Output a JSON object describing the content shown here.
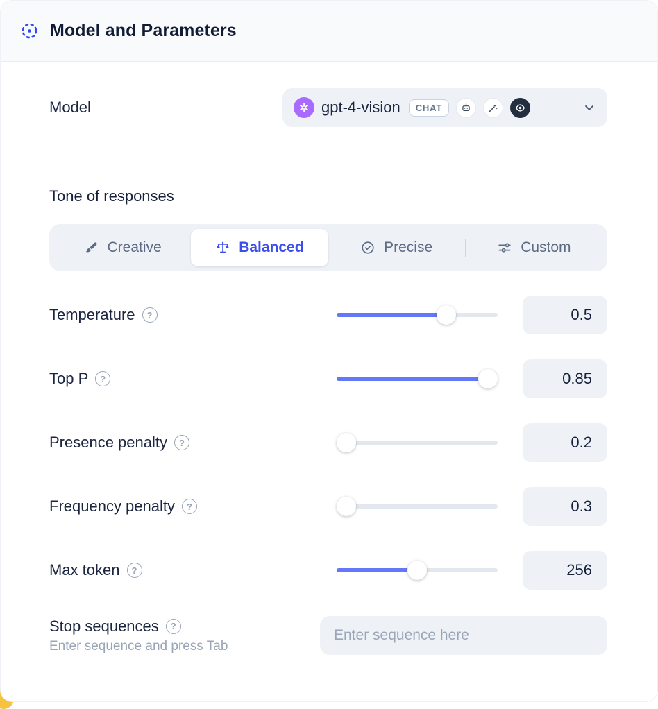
{
  "header": {
    "title": "Model and Parameters"
  },
  "model_row": {
    "label": "Model",
    "selected_model": "gpt-4-vision",
    "type_badge": "CHAT",
    "capabilities": [
      "robot-icon",
      "magic-wand-icon",
      "vision-eye-icon"
    ]
  },
  "tone": {
    "heading": "Tone of responses",
    "options": [
      {
        "label": "Creative",
        "icon": "brush-icon",
        "selected": false
      },
      {
        "label": "Balanced",
        "icon": "balance-scale-icon",
        "selected": true
      },
      {
        "label": "Precise",
        "icon": "target-check-icon",
        "selected": false
      },
      {
        "label": "Custom",
        "icon": "sliders-icon",
        "selected": false
      }
    ]
  },
  "parameters": [
    {
      "label": "Temperature",
      "value": "0.5",
      "percent": 68
    },
    {
      "label": "Top P",
      "value": "0.85",
      "percent": 99
    },
    {
      "label": "Presence penalty",
      "value": "0.2",
      "percent": 0
    },
    {
      "label": "Frequency penalty",
      "value": "0.3",
      "percent": 0
    },
    {
      "label": "Max token",
      "value": "256",
      "percent": 50
    }
  ],
  "stop": {
    "label": "Stop sequences",
    "hint": "Enter sequence and press Tab",
    "placeholder": "Enter sequence here"
  },
  "icons": {
    "help": "?"
  },
  "colors": {
    "accent_blue": "#3b4eea",
    "slider_fill": "#6377f8",
    "openai_purple": "#a96bff",
    "header_bg": "#f8fafc",
    "field_bg": "#eef1f6",
    "muted_text": "#5d6b84",
    "hint_text": "#9aa6b6",
    "corner_yellow": "#f6c33f"
  }
}
